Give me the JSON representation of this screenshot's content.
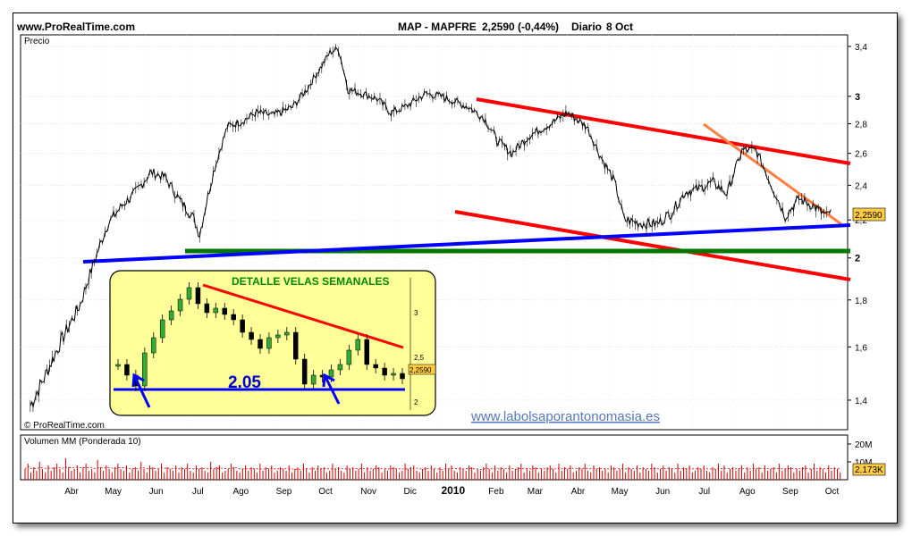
{
  "header": {
    "site": "www.ProRealTime.com",
    "instrument": "MAP - MAPFRE",
    "price": "2,2590 (-0,44%)",
    "period": "Diario",
    "date": "8 Oct"
  },
  "colors": {
    "price_line": "#000000",
    "channel": "#ff0000",
    "support_blue": "#0000ff",
    "support_green": "#007700",
    "trendline_orange": "#ff8040",
    "inset_bg": "#ffff99",
    "volume_bar": "#cc0000",
    "volume_avg": "#cc0000",
    "watermark": "#5577bb",
    "price_tag_bg": "#ffcc44"
  },
  "chart_data": [
    {
      "type": "line",
      "title": "MAP - MAPFRE",
      "ylabel": "Precio",
      "ylim": [
        1.3,
        3.5
      ],
      "y_scale": "log",
      "yticks": [
        "3,4",
        "3",
        "2,8",
        "2,6",
        "2,4",
        "2,2",
        "2",
        "1,8",
        "1,6",
        "1,4"
      ],
      "ytick_values": [
        3.4,
        3.0,
        2.8,
        2.6,
        2.4,
        2.2,
        2.0,
        1.8,
        1.6,
        1.4
      ],
      "xticks": [
        "Abr",
        "May",
        "Jun",
        "Jul",
        "Ago",
        "Sep",
        "Oct",
        "Nov",
        "Dic",
        "2010",
        "Feb",
        "Mar",
        "Abr",
        "May",
        "Jun",
        "Jul",
        "Ago",
        "Sep",
        "Oct"
      ],
      "series": [
        {
          "x": [
            "2009-03-10",
            "2009-03-20",
            "2009-04-01",
            "2009-04-15",
            "2009-04-25",
            "2009-05-05",
            "2009-05-15",
            "2009-05-25",
            "2009-06-05",
            "2009-06-15",
            "2009-06-25",
            "2009-07-05",
            "2009-07-10",
            "2009-07-20",
            "2009-07-30",
            "2009-08-10",
            "2009-08-20",
            "2009-09-01",
            "2009-09-15",
            "2009-09-25",
            "2009-10-05",
            "2009-10-12",
            "2009-10-18",
            "2009-10-25",
            "2009-11-05",
            "2009-11-15",
            "2009-11-25",
            "2009-12-05",
            "2009-12-20",
            "2009-12-31",
            "2010-01-10",
            "2010-01-20",
            "2010-01-31",
            "2010-02-10",
            "2010-02-20",
            "2010-03-05",
            "2010-03-20",
            "2010-04-01",
            "2010-04-15",
            "2010-04-25",
            "2010-05-05",
            "2010-05-12",
            "2010-05-25",
            "2010-06-05",
            "2010-06-15",
            "2010-06-25",
            "2010-07-05",
            "2010-07-15",
            "2010-07-25",
            "2010-08-05",
            "2010-08-15",
            "2010-08-25",
            "2010-09-05",
            "2010-09-15",
            "2010-09-25",
            "2010-10-05",
            "2010-10-08"
          ],
          "y": [
            1.38,
            1.48,
            1.62,
            1.78,
            1.98,
            2.18,
            2.28,
            2.36,
            2.48,
            2.45,
            2.32,
            2.22,
            2.12,
            2.48,
            2.78,
            2.82,
            2.88,
            2.86,
            2.92,
            3.05,
            3.22,
            3.35,
            3.38,
            3.05,
            3.02,
            2.98,
            2.88,
            2.92,
            3.02,
            3.0,
            2.96,
            2.92,
            2.84,
            2.68,
            2.6,
            2.72,
            2.8,
            2.88,
            2.78,
            2.58,
            2.42,
            2.2,
            2.18,
            2.18,
            2.24,
            2.36,
            2.38,
            2.42,
            2.35,
            2.62,
            2.62,
            2.42,
            2.22,
            2.32,
            2.28,
            2.22,
            2.259
          ]
        }
      ],
      "annotations": [
        "2,2590"
      ],
      "grid": true
    },
    {
      "type": "bar",
      "title": "Volumen MM (Ponderada 10)",
      "yticks": [
        "20M",
        "10M"
      ],
      "ytick_values": [
        20,
        10
      ],
      "ylim": [
        0,
        25
      ],
      "unit": "M",
      "last_value": "2.173K",
      "values": [
        6,
        9,
        4,
        7,
        5,
        10,
        6,
        4,
        8,
        5,
        7,
        9,
        6,
        4,
        12,
        7,
        5,
        6,
        8,
        4,
        7,
        9,
        5,
        6,
        4,
        11,
        7,
        5,
        8,
        6,
        4,
        7,
        9,
        6,
        5,
        8,
        4,
        6,
        7,
        5,
        10,
        6,
        4,
        8,
        7,
        5,
        6,
        9,
        4,
        7,
        6,
        5,
        8,
        4,
        7,
        6,
        9,
        5,
        4,
        8,
        6,
        7,
        5,
        4,
        10,
        6,
        7,
        8,
        4,
        5,
        6,
        9,
        7,
        5,
        4,
        6,
        8,
        5,
        7,
        6,
        4,
        9,
        5,
        7,
        6,
        8,
        4,
        5,
        7,
        6,
        5,
        8,
        4,
        6,
        7,
        5,
        9,
        6,
        4,
        7,
        5,
        8,
        6,
        7,
        4,
        5,
        9,
        6,
        7,
        5,
        4,
        8,
        6,
        7,
        5,
        6,
        9,
        4,
        7,
        5,
        6,
        8,
        7,
        4,
        6,
        5,
        8,
        7,
        6,
        4,
        5,
        9,
        6,
        7,
        8,
        5,
        4,
        6,
        7,
        5,
        8,
        6,
        4,
        7,
        5,
        9,
        6,
        8,
        5,
        4,
        7,
        6,
        5,
        8,
        7,
        4,
        6,
        5,
        7,
        9,
        6,
        4,
        8,
        5,
        7,
        6,
        4,
        8,
        5,
        6,
        7,
        9,
        4,
        6,
        5,
        8,
        7,
        4,
        6,
        5,
        7,
        8,
        6,
        4,
        9,
        5,
        7,
        6,
        8,
        4,
        5,
        7,
        6,
        9,
        5,
        4,
        8,
        6,
        7,
        5,
        6,
        4,
        8,
        7,
        5,
        6,
        9,
        4,
        7,
        6,
        5,
        8,
        4,
        7,
        6,
        5,
        9,
        7,
        4,
        6,
        8,
        5,
        7,
        6,
        4,
        9,
        5,
        7,
        6,
        8,
        4,
        5,
        7,
        6,
        8,
        5,
        4,
        7,
        6,
        9,
        5,
        8,
        4,
        6,
        7,
        5,
        6,
        8,
        4,
        7,
        5,
        9,
        6,
        7,
        4,
        8,
        5,
        6,
        7,
        4,
        9,
        5,
        6,
        8,
        7,
        4,
        6,
        5,
        7,
        8,
        4,
        6,
        9,
        5,
        7,
        6,
        4,
        8,
        5,
        7,
        6,
        4
      ]
    },
    {
      "type": "line",
      "title": "DETALLE VELAS SEMANALES",
      "yticks": [
        "3",
        "2,5",
        "2"
      ],
      "ytick_values": [
        3.0,
        2.5,
        2.0
      ],
      "ylim": [
        1.95,
        3.35
      ],
      "series": [
        {
          "y": [
            2.42,
            2.3,
            2.18,
            2.55,
            2.72,
            2.92,
            3.02,
            3.15,
            3.28,
            3.1,
            3.0,
            3.05,
            2.98,
            2.92,
            2.78,
            2.7,
            2.6,
            2.72,
            2.75,
            2.78,
            2.48,
            2.2,
            2.3,
            2.28,
            2.36,
            2.42,
            2.58,
            2.7,
            2.42,
            2.38,
            2.3,
            2.32,
            2.26
          ]
        }
      ],
      "annotations": [
        "2.05",
        "2,2590"
      ]
    }
  ],
  "watermark": "www.labolsaporantonomasia.es",
  "footer_site": "© ProRealTime.com"
}
